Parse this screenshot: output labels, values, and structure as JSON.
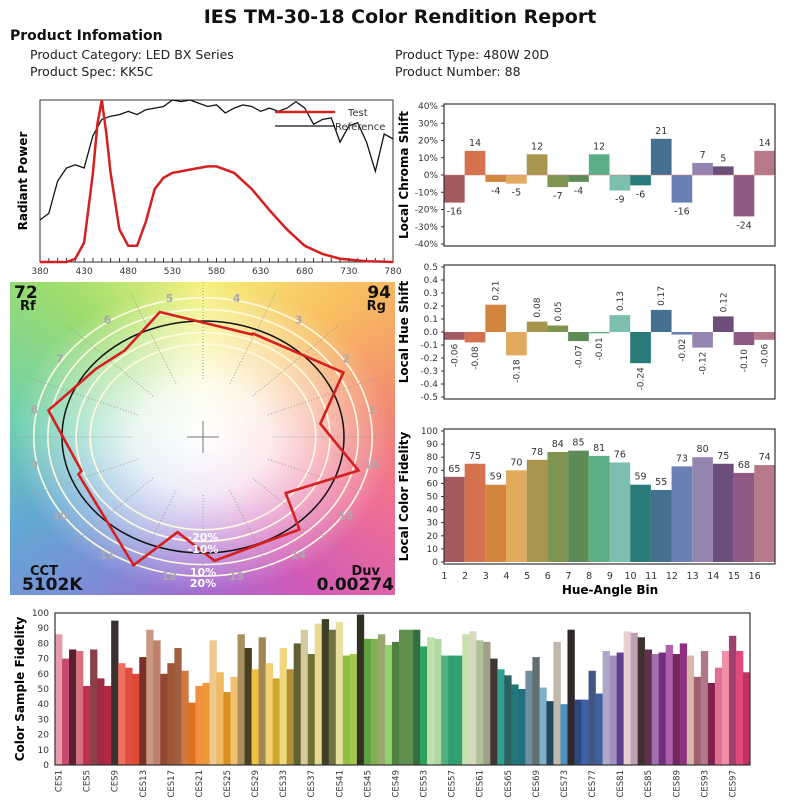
{
  "header": {
    "title": "IES TM-30-18 Color Rendition Report",
    "section": "Product Infomation",
    "category": "Product Category: LED BX Series",
    "spec": "Product Spec: KK5C",
    "type": "Product Type: 480W  20D",
    "number": "Product Number: 88"
  },
  "vector_graphic": {
    "rf_value": "72",
    "rf_label": "Rf",
    "rg_value": "94",
    "rg_label": "Rg",
    "cct_label": "CCT",
    "cct_value": "5102K",
    "duv_label": "Duv",
    "duv_value": "0.00274",
    "ring_labels": [
      "-20%",
      "-10%",
      "10%",
      "20%"
    ],
    "bin_labels": [
      "1",
      "2",
      "3",
      "4",
      "5",
      "6",
      "7",
      "8",
      "9",
      "10",
      "11",
      "12",
      "13",
      "14",
      "15",
      "16"
    ],
    "test_color": "#d42020",
    "reference_color": "#111111"
  },
  "chart_data": [
    {
      "type": "line",
      "ylabel": "Radiant Power",
      "xlim": [
        380,
        780
      ],
      "xticks": [
        380,
        430,
        480,
        530,
        580,
        630,
        680,
        730,
        780
      ],
      "legend": [
        "Test",
        "Reference"
      ],
      "legend_placement": "top-right",
      "series": [
        {
          "name": "Test",
          "color": "#d42020",
          "x": [
            380,
            410,
            420,
            430,
            440,
            445,
            450,
            455,
            460,
            470,
            480,
            490,
            500,
            510,
            520,
            530,
            550,
            570,
            580,
            600,
            620,
            640,
            660,
            680,
            700,
            720,
            750,
            780
          ],
          "y": [
            0,
            0,
            0.02,
            0.12,
            0.55,
            0.85,
            1.0,
            0.8,
            0.55,
            0.2,
            0.1,
            0.1,
            0.25,
            0.45,
            0.52,
            0.55,
            0.57,
            0.59,
            0.59,
            0.55,
            0.45,
            0.32,
            0.2,
            0.1,
            0.05,
            0.02,
            0.005,
            0
          ]
        },
        {
          "name": "Reference",
          "color": "#111111",
          "x": [
            380,
            390,
            400,
            410,
            420,
            430,
            440,
            450,
            460,
            470,
            480,
            490,
            500,
            510,
            520,
            530,
            540,
            550,
            560,
            570,
            580,
            590,
            600,
            610,
            620,
            630,
            640,
            650,
            660,
            670,
            680,
            690,
            700,
            710,
            720,
            730,
            740,
            750,
            760,
            770,
            780
          ],
          "y": [
            0.26,
            0.3,
            0.5,
            0.58,
            0.6,
            0.58,
            0.78,
            0.88,
            0.9,
            0.91,
            0.93,
            0.91,
            0.94,
            0.95,
            0.96,
            1.0,
            0.99,
            1.0,
            0.98,
            0.96,
            0.97,
            0.92,
            0.95,
            0.97,
            0.96,
            0.93,
            0.95,
            0.93,
            0.95,
            0.99,
            0.95,
            0.85,
            0.88,
            0.89,
            0.74,
            0.84,
            0.86,
            0.74,
            0.56,
            0.79,
            0.76
          ]
        }
      ]
    },
    {
      "type": "bar",
      "ylabel": "Local Chroma Shift",
      "ylim": [
        -40,
        40
      ],
      "yticks": [
        "40%",
        "30%",
        "20%",
        "10%",
        "0%",
        "-10%",
        "-20%",
        "-30%",
        "-40%"
      ],
      "categories": [
        1,
        2,
        3,
        4,
        5,
        6,
        7,
        8,
        9,
        10,
        11,
        12,
        13,
        14,
        15,
        16
      ],
      "values": [
        -16,
        14,
        -4,
        -5,
        12,
        -7,
        -4,
        12,
        -9,
        -6,
        21,
        -16,
        7,
        5,
        -24,
        14
      ]
    },
    {
      "type": "bar",
      "ylabel": "Local Hue Shift",
      "ylim": [
        -0.5,
        0.5
      ],
      "yticks": [
        "0.5",
        "0.4",
        "0.3",
        "0.2",
        "0.1",
        "0.0",
        "-0.1",
        "-0.2",
        "-0.3",
        "-0.4",
        "-0.5"
      ],
      "categories": [
        1,
        2,
        3,
        4,
        5,
        6,
        7,
        8,
        9,
        10,
        11,
        12,
        13,
        14,
        15,
        16
      ],
      "values": [
        -0.06,
        -0.08,
        0.21,
        -0.18,
        0.08,
        0.05,
        -0.07,
        -0.01,
        0.13,
        -0.24,
        0.17,
        -0.02,
        -0.12,
        0.12,
        -0.1,
        -0.06
      ],
      "labels": [
        "-0.06",
        "-0.08",
        "0.21",
        "-0.18",
        "0.08",
        "0.05",
        "-0.07",
        "-0.01",
        "0.13",
        "-0.24",
        "0.17",
        "-0.02",
        "-0.12",
        "0.12",
        "-0.10",
        "-0.06"
      ]
    },
    {
      "type": "bar",
      "ylabel": "Local Color Fidelity",
      "xlabel": "Hue-Angle Bin",
      "ylim": [
        0,
        100
      ],
      "yticks": [
        100,
        90,
        80,
        70,
        60,
        50,
        40,
        30,
        20,
        10,
        0
      ],
      "categories": [
        1,
        2,
        3,
        4,
        5,
        6,
        7,
        8,
        9,
        10,
        11,
        12,
        13,
        14,
        15,
        16
      ],
      "values": [
        65,
        75,
        59,
        70,
        78,
        84,
        85,
        81,
        76,
        59,
        55,
        73,
        80,
        75,
        68,
        74
      ]
    },
    {
      "type": "bar",
      "ylabel": "Color Sample Fidelity",
      "ylim": [
        0,
        100
      ],
      "yticks": [
        100,
        90,
        80,
        70,
        60,
        50,
        40,
        30,
        20,
        10,
        0
      ],
      "tick_labels": [
        "CES1",
        "CES5",
        "CES9",
        "CES13",
        "CES17",
        "CES21",
        "CES25",
        "CES29",
        "CES33",
        "CES37",
        "CES41",
        "CES45",
        "CES49",
        "CES53",
        "CES57",
        "CES61",
        "CES65",
        "CES69",
        "CES73",
        "CES77",
        "CES81",
        "CES85",
        "CES89",
        "CES93",
        "CES97"
      ],
      "values": [
        86,
        70,
        76,
        75,
        52,
        76,
        57,
        52,
        95,
        67,
        64,
        60,
        71,
        89,
        82,
        60,
        67,
        77,
        62,
        41,
        52,
        54,
        82,
        61,
        48,
        58,
        86,
        77,
        63,
        84,
        67,
        57,
        77,
        63,
        80,
        89,
        73,
        93,
        96,
        89,
        94,
        72,
        73,
        99,
        83,
        83,
        86,
        79,
        81,
        89,
        89,
        89,
        78,
        84,
        83,
        72,
        72,
        72,
        86,
        88,
        82,
        81,
        70,
        63,
        59,
        53,
        50,
        62,
        71,
        51,
        42,
        81,
        40,
        89,
        43,
        43,
        62,
        47,
        75,
        72,
        74,
        88,
        87,
        84,
        76,
        73,
        74,
        79,
        73,
        80,
        72,
        58,
        75,
        54,
        64,
        75,
        85,
        75,
        61
      ],
      "colors": [
        "#e89aa8",
        "#c84a6e",
        "#5a2030",
        "#d87080",
        "#c03050",
        "#8a4048",
        "#a02840",
        "#b02840",
        "#3a3030",
        "#f07060",
        "#e05040",
        "#e04838",
        "#7a3028",
        "#c89880",
        "#c08070",
        "#904830",
        "#a05838",
        "#a06040",
        "#d07840",
        "#e07020",
        "#f09040",
        "#f09838",
        "#f0c890",
        "#f0b860",
        "#d89020",
        "#f0c070",
        "#a89060",
        "#4a4020",
        "#f0c040",
        "#a08850",
        "#f0d070",
        "#d0a830",
        "#f0d880",
        "#b09030",
        "#606030",
        "#d8c8a0",
        "#707030",
        "#e8d890",
        "#404028",
        "#707040",
        "#e8e0a0",
        "#90c040",
        "#a0c850",
        "#303020",
        "#60a040",
        "#80b050",
        "#98a870",
        "#90d070",
        "#508040",
        "#609050",
        "#609050",
        "#307040",
        "#30a060",
        "#c0e0b0",
        "#b0d8a0",
        "#50b080",
        "#30a070",
        "#30a070",
        "#c8e0b0",
        "#d8d8c0",
        "#b0c098",
        "#a0a088",
        "#403830",
        "#30a090",
        "#306060",
        "#207878",
        "#207080",
        "#7090a0",
        "#607070",
        "#80b0c8",
        "#204860",
        "#c0b8a8",
        "#5090c0",
        "#302828",
        "#304880",
        "#4060a8",
        "#405880",
        "#4060a0",
        "#b0a8c8",
        "#a090c0",
        "#604090",
        "#e8d0d0",
        "#c0a0b8",
        "#403030",
        "#603050",
        "#a070b0",
        "#703080",
        "#b060a8",
        "#702860",
        "#903080",
        "#d8b8a8",
        "#a06070",
        "#b07888",
        "#802050",
        "#e07090",
        "#f090a8",
        "#a04070",
        "#e04880",
        "#c03060"
      ]
    }
  ],
  "bin_colors": [
    "#a35a5e",
    "#d5714f",
    "#d2853c",
    "#e1aa5e",
    "#a8964e",
    "#7f9450",
    "#5e8a57",
    "#5cae85",
    "#7dbfae",
    "#2b7a7a",
    "#46708f",
    "#6a80b5",
    "#9385b0",
    "#6b4f7a",
    "#8e5a84",
    "#b77889"
  ]
}
